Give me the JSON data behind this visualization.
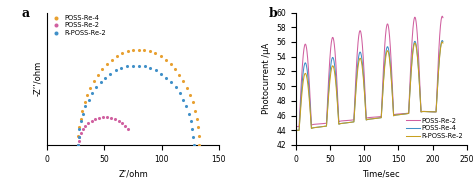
{
  "panel_a": {
    "title": "a",
    "xlabel": "Z’/ohm",
    "ylabel": "-Z’’/ohm",
    "xlim": [
      0,
      150
    ],
    "ylim": [
      0,
      50
    ],
    "legend": [
      "POSS-Re-4",
      "POSS-Re-2",
      "R-POSS-Re-2"
    ],
    "colors": [
      "#E8A030",
      "#D060A0",
      "#4090C8"
    ],
    "xticks": [
      0,
      50,
      100,
      150
    ]
  },
  "panel_b": {
    "title": "b",
    "xlabel": "Time/sec",
    "ylabel": "Photocurrent /μA",
    "xlim": [
      0,
      250
    ],
    "ylim": [
      42,
      60
    ],
    "yticks": [
      42,
      44,
      46,
      48,
      50,
      52,
      54,
      56,
      58,
      60
    ],
    "xticks": [
      0,
      50,
      100,
      150,
      200,
      250
    ],
    "legend": [
      "POSS-Re-2",
      "POSS-Re-4",
      "R-POSS-Re-2"
    ],
    "colors": [
      "#D060A0",
      "#4090C8",
      "#C8A020"
    ]
  }
}
